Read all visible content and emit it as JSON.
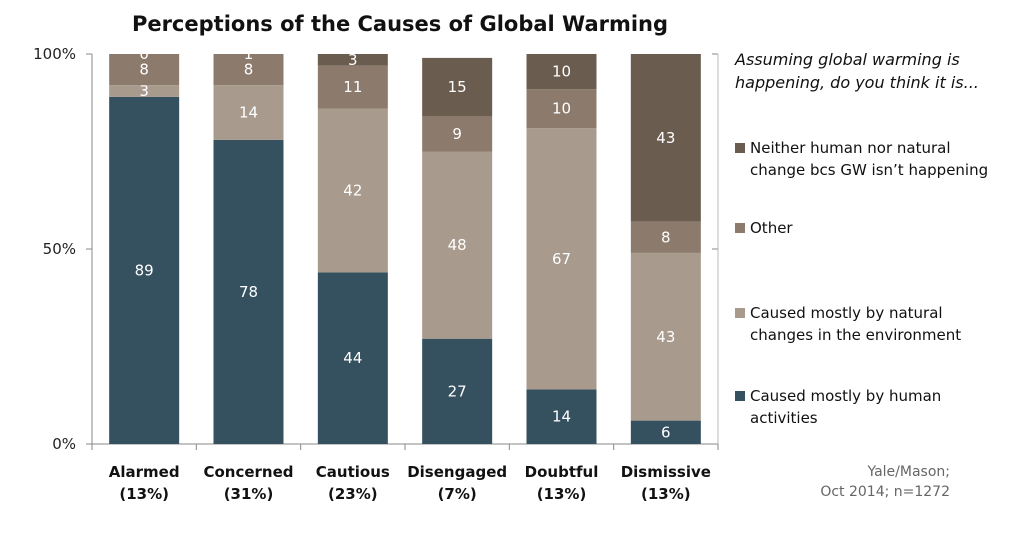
{
  "chart_data": {
    "type": "bar",
    "stacked": true,
    "title": "Perceptions of the Causes of Global Warming",
    "categories": [
      "Alarmed\n(13%)",
      "Concerned\n(31%)",
      "Cautious\n(23%)",
      "Disengaged\n(7%)",
      "Doubtful\n(13%)",
      "Dismissive\n(13%)"
    ],
    "series": [
      {
        "name": "Caused mostly by human activities",
        "values": [
          89,
          78,
          44,
          27,
          14,
          6
        ],
        "color": "#35505f"
      },
      {
        "name": "Caused mostly by natural changes in the environment",
        "values": [
          3,
          14,
          42,
          48,
          67,
          43
        ],
        "color": "#a89a8c"
      },
      {
        "name": "Other",
        "values": [
          8,
          8,
          11,
          9,
          10,
          8
        ],
        "color": "#8c7b6d"
      },
      {
        "name": "Neither human nor natural change bcs GW isn’t happening",
        "values": [
          0,
          1,
          3,
          15,
          10,
          43
        ],
        "color": "#6b5c50"
      }
    ],
    "yticks": [
      "0%",
      "50%",
      "100%"
    ],
    "ylim": [
      0,
      100
    ],
    "legend_title": "Assuming global warming is happening, do you think it is...",
    "legend_position": "right",
    "grid": false
  },
  "source_line1": "Yale/Mason;",
  "source_line2": "Oct 2014; n=1272"
}
